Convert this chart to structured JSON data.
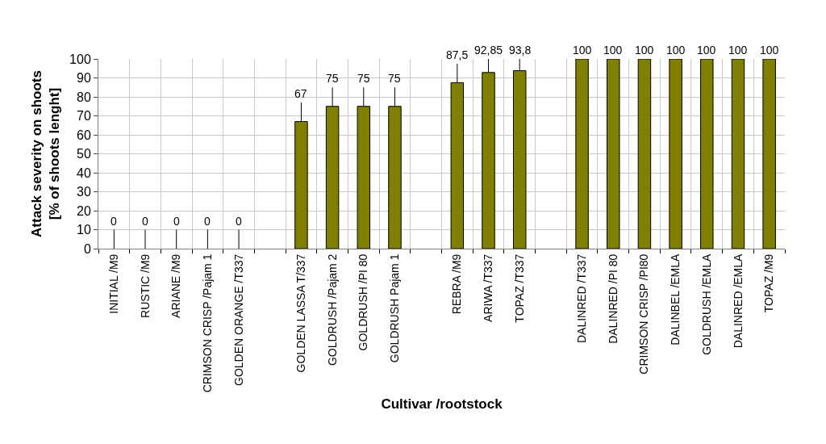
{
  "chart_data": {
    "type": "bar",
    "xlabel": "Cultivar /rootstock",
    "ylabel": "Attack severity on shoots\n[% of shoots lenght]",
    "categories": [
      "INITIAL /M9",
      "RUSTIC /M9",
      "ARIANE /M9",
      "CRIMSON CRISP /Pajam 1",
      "GOLDEN ORANGE /T337",
      null,
      "GOLDEN LASSA T/337",
      "GOLDRUSH /Pajam 2",
      "GOLDRUSH /PI 80",
      "GOLDRUSH Pajam 1",
      null,
      "REBRA /M9",
      "ARIWA /T337",
      "TOPAZ /T337",
      null,
      "DALINRED /T337",
      "DALINRED /PI 80",
      "CRIMSON CRISP /PI80",
      "DALINBEL /EMLA",
      "GOLDRUSH /EMLA",
      "DALINRED /EMLA",
      "TOPAZ /M9"
    ],
    "values": [
      0,
      0,
      0,
      0,
      0,
      null,
      67,
      75,
      75,
      75,
      null,
      87.5,
      92.85,
      93.8,
      null,
      100,
      100,
      100,
      100,
      100,
      100,
      100
    ],
    "value_labels": [
      "0",
      "0",
      "0",
      "0",
      "0",
      null,
      "67",
      "75",
      "75",
      "75",
      null,
      "87,5",
      "92,85",
      "93,8",
      null,
      "100",
      "100",
      "100",
      "100",
      "100",
      "100",
      "100"
    ],
    "errors": [
      [
        0,
        10
      ],
      [
        0,
        10
      ],
      [
        0,
        10
      ],
      [
        0,
        10
      ],
      [
        0,
        10
      ],
      null,
      [
        67,
        77
      ],
      [
        75,
        85
      ],
      [
        75,
        85
      ],
      [
        75,
        85
      ],
      null,
      [
        87.5,
        97.5
      ],
      [
        92.85,
        100
      ],
      [
        93.8,
        100
      ],
      null,
      null,
      null,
      null,
      null,
      null,
      null,
      null
    ],
    "color": "#808000",
    "ylim": [
      0,
      100
    ],
    "yticks": [
      0,
      10,
      20,
      30,
      40,
      50,
      60,
      70,
      80,
      90,
      100
    ],
    "grid": true
  }
}
